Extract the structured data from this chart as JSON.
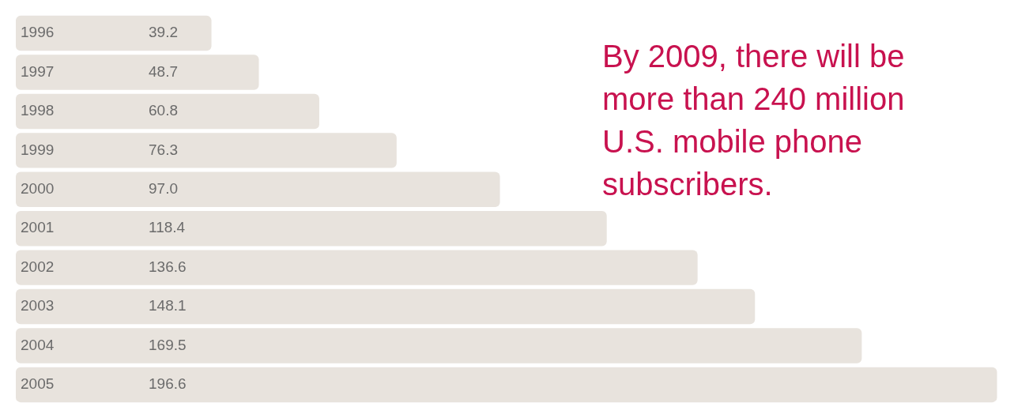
{
  "chart_data": {
    "type": "bar",
    "orientation": "horizontal",
    "title": "By 2009, there will be more than 240 million U.S. mobile phone subscribers.",
    "categories": [
      "1996",
      "1997",
      "1998",
      "1999",
      "2000",
      "2001",
      "2002",
      "2003",
      "2004",
      "2005"
    ],
    "values": [
      39.2,
      48.7,
      60.8,
      76.3,
      97.0,
      118.4,
      136.6,
      148.1,
      169.5,
      196.6
    ],
    "value_labels": [
      "39.2",
      "48.7",
      "60.8",
      "76.3",
      "97.0",
      "118.4",
      "136.6",
      "148.1",
      "169.5",
      "196.6"
    ],
    "color": "#e8e3dd",
    "grid": false
  }
}
